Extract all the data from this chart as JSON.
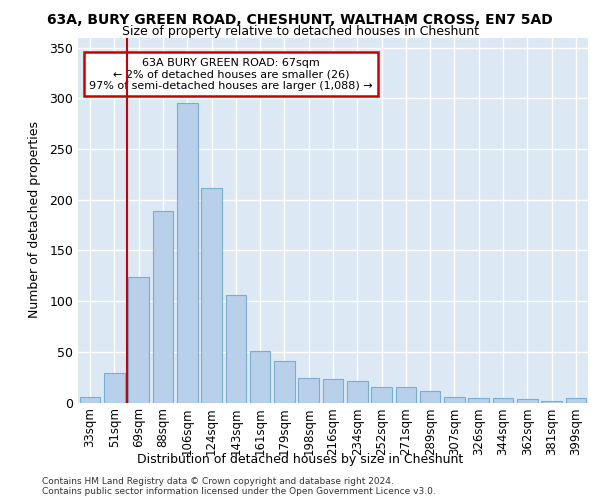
{
  "title": "63A, BURY GREEN ROAD, CHESHUNT, WALTHAM CROSS, EN7 5AD",
  "subtitle": "Size of property relative to detached houses in Cheshunt",
  "xlabel": "Distribution of detached houses by size in Cheshunt",
  "ylabel": "Number of detached properties",
  "bar_color": "#b8d0ea",
  "bar_edge_color": "#7aadd4",
  "background_color": "#dce9f5",
  "grid_color": "#ffffff",
  "fig_bg_color": "#ffffff",
  "categories": [
    "33sqm",
    "51sqm",
    "69sqm",
    "88sqm",
    "106sqm",
    "124sqm",
    "143sqm",
    "161sqm",
    "179sqm",
    "198sqm",
    "216sqm",
    "234sqm",
    "252sqm",
    "271sqm",
    "289sqm",
    "307sqm",
    "326sqm",
    "344sqm",
    "362sqm",
    "381sqm",
    "399sqm"
  ],
  "values": [
    5,
    29,
    124,
    189,
    295,
    212,
    106,
    51,
    41,
    24,
    23,
    21,
    15,
    15,
    11,
    5,
    4,
    4,
    3,
    1,
    4
  ],
  "ylim": [
    0,
    360
  ],
  "yticks": [
    0,
    50,
    100,
    150,
    200,
    250,
    300,
    350
  ],
  "vline_x_index": 2,
  "annotation_text": "63A BURY GREEN ROAD: 67sqm\n← 2% of detached houses are smaller (26)\n97% of semi-detached houses are larger (1,088) →",
  "annotation_box_color": "#ffffff",
  "annotation_box_edge": "#cc0000",
  "footer_line1": "Contains HM Land Registry data © Crown copyright and database right 2024.",
  "footer_line2": "Contains public sector information licensed under the Open Government Licence v3.0."
}
